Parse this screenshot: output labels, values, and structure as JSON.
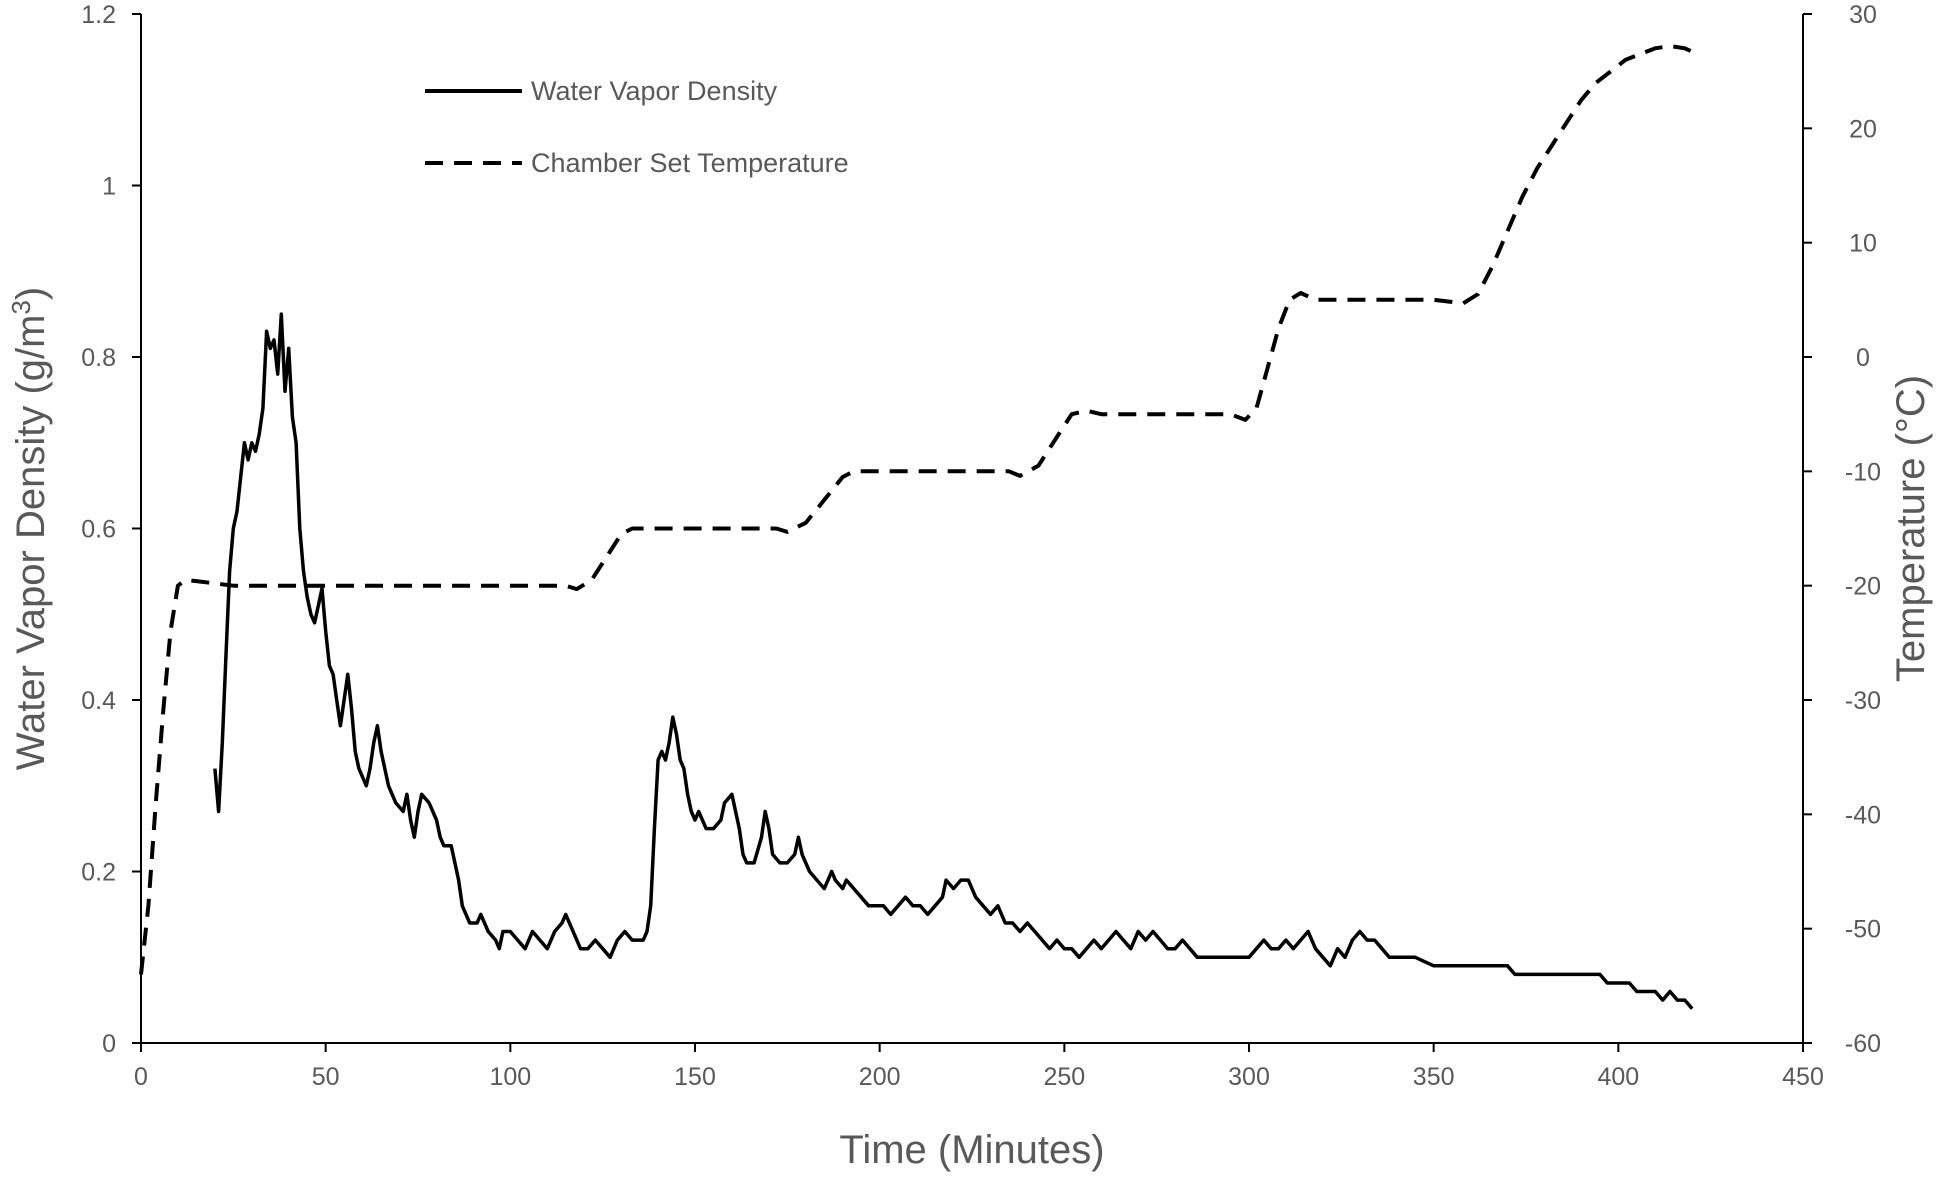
{
  "chart_data": {
    "type": "line",
    "xlabel": "Time (Minutes)",
    "ylabel_left": "Water Vapor Density (g/m",
    "ylabel_left_sup": "3",
    "ylabel_left_end": ")",
    "ylabel_right": "Temperature (°C)",
    "xlim": [
      0,
      450
    ],
    "ylim_left": [
      0,
      1.2
    ],
    "ylim_right": [
      -60,
      30
    ],
    "x_ticks": [
      "0",
      "50",
      "100",
      "150",
      "200",
      "250",
      "300",
      "350",
      "400",
      "450"
    ],
    "y_left_ticks": [
      "0",
      "0.2",
      "0.4",
      "0.6",
      "0.8",
      "1",
      "1.2"
    ],
    "y_right_ticks": [
      "-60",
      "-50",
      "-40",
      "-30",
      "-20",
      "-10",
      "0",
      "10",
      "20",
      "30"
    ],
    "legend_position": "top-left",
    "grid": false,
    "series": [
      {
        "name": "Water Vapor Density",
        "axis": "left",
        "style": "solid",
        "color": "#000000",
        "points": [
          [
            20,
            0.32
          ],
          [
            21,
            0.27
          ],
          [
            22,
            0.35
          ],
          [
            23,
            0.45
          ],
          [
            24,
            0.55
          ],
          [
            25,
            0.6
          ],
          [
            26,
            0.62
          ],
          [
            27,
            0.66
          ],
          [
            28,
            0.7
          ],
          [
            29,
            0.68
          ],
          [
            30,
            0.7
          ],
          [
            31,
            0.69
          ],
          [
            32,
            0.71
          ],
          [
            33,
            0.74
          ],
          [
            34,
            0.83
          ],
          [
            35,
            0.81
          ],
          [
            36,
            0.82
          ],
          [
            37,
            0.78
          ],
          [
            38,
            0.85
          ],
          [
            39,
            0.76
          ],
          [
            40,
            0.81
          ],
          [
            41,
            0.73
          ],
          [
            42,
            0.7
          ],
          [
            43,
            0.6
          ],
          [
            44,
            0.55
          ],
          [
            45,
            0.52
          ],
          [
            46,
            0.5
          ],
          [
            47,
            0.49
          ],
          [
            48,
            0.51
          ],
          [
            49,
            0.53
          ],
          [
            50,
            0.48
          ],
          [
            51,
            0.44
          ],
          [
            52,
            0.43
          ],
          [
            53,
            0.4
          ],
          [
            54,
            0.37
          ],
          [
            55,
            0.4
          ],
          [
            56,
            0.43
          ],
          [
            57,
            0.39
          ],
          [
            58,
            0.34
          ],
          [
            59,
            0.32
          ],
          [
            60,
            0.31
          ],
          [
            61,
            0.3
          ],
          [
            62,
            0.32
          ],
          [
            63,
            0.35
          ],
          [
            64,
            0.37
          ],
          [
            65,
            0.34
          ],
          [
            67,
            0.3
          ],
          [
            69,
            0.28
          ],
          [
            71,
            0.27
          ],
          [
            72,
            0.29
          ],
          [
            73,
            0.26
          ],
          [
            74,
            0.24
          ],
          [
            75,
            0.27
          ],
          [
            76,
            0.29
          ],
          [
            78,
            0.28
          ],
          [
            80,
            0.26
          ],
          [
            81,
            0.24
          ],
          [
            82,
            0.23
          ],
          [
            84,
            0.23
          ],
          [
            85,
            0.21
          ],
          [
            86,
            0.19
          ],
          [
            87,
            0.16
          ],
          [
            88,
            0.15
          ],
          [
            89,
            0.14
          ],
          [
            91,
            0.14
          ],
          [
            92,
            0.15
          ],
          [
            94,
            0.13
          ],
          [
            96,
            0.12
          ],
          [
            97,
            0.11
          ],
          [
            98,
            0.13
          ],
          [
            100,
            0.13
          ],
          [
            102,
            0.12
          ],
          [
            104,
            0.11
          ],
          [
            106,
            0.13
          ],
          [
            108,
            0.12
          ],
          [
            110,
            0.11
          ],
          [
            112,
            0.13
          ],
          [
            114,
            0.14
          ],
          [
            115,
            0.15
          ],
          [
            117,
            0.13
          ],
          [
            119,
            0.11
          ],
          [
            121,
            0.11
          ],
          [
            123,
            0.12
          ],
          [
            125,
            0.11
          ],
          [
            127,
            0.1
          ],
          [
            129,
            0.12
          ],
          [
            131,
            0.13
          ],
          [
            133,
            0.12
          ],
          [
            135,
            0.12
          ],
          [
            136,
            0.12
          ],
          [
            137,
            0.13
          ],
          [
            138,
            0.16
          ],
          [
            139,
            0.25
          ],
          [
            140,
            0.33
          ],
          [
            141,
            0.34
          ],
          [
            142,
            0.33
          ],
          [
            143,
            0.35
          ],
          [
            144,
            0.38
          ],
          [
            145,
            0.36
          ],
          [
            146,
            0.33
          ],
          [
            147,
            0.32
          ],
          [
            148,
            0.29
          ],
          [
            149,
            0.27
          ],
          [
            150,
            0.26
          ],
          [
            151,
            0.27
          ],
          [
            152,
            0.26
          ],
          [
            153,
            0.25
          ],
          [
            155,
            0.25
          ],
          [
            157,
            0.26
          ],
          [
            158,
            0.28
          ],
          [
            160,
            0.29
          ],
          [
            161,
            0.27
          ],
          [
            162,
            0.25
          ],
          [
            163,
            0.22
          ],
          [
            164,
            0.21
          ],
          [
            166,
            0.21
          ],
          [
            168,
            0.24
          ],
          [
            169,
            0.27
          ],
          [
            170,
            0.25
          ],
          [
            171,
            0.22
          ],
          [
            173,
            0.21
          ],
          [
            175,
            0.21
          ],
          [
            177,
            0.22
          ],
          [
            178,
            0.24
          ],
          [
            179,
            0.22
          ],
          [
            181,
            0.2
          ],
          [
            183,
            0.19
          ],
          [
            185,
            0.18
          ],
          [
            186,
            0.19
          ],
          [
            187,
            0.2
          ],
          [
            188,
            0.19
          ],
          [
            190,
            0.18
          ],
          [
            191,
            0.19
          ],
          [
            193,
            0.18
          ],
          [
            195,
            0.17
          ],
          [
            197,
            0.16
          ],
          [
            199,
            0.16
          ],
          [
            201,
            0.16
          ],
          [
            203,
            0.15
          ],
          [
            205,
            0.16
          ],
          [
            207,
            0.17
          ],
          [
            209,
            0.16
          ],
          [
            211,
            0.16
          ],
          [
            213,
            0.15
          ],
          [
            215,
            0.16
          ],
          [
            217,
            0.17
          ],
          [
            218,
            0.19
          ],
          [
            220,
            0.18
          ],
          [
            222,
            0.19
          ],
          [
            224,
            0.19
          ],
          [
            226,
            0.17
          ],
          [
            228,
            0.16
          ],
          [
            230,
            0.15
          ],
          [
            232,
            0.16
          ],
          [
            234,
            0.14
          ],
          [
            236,
            0.14
          ],
          [
            238,
            0.13
          ],
          [
            240,
            0.14
          ],
          [
            242,
            0.13
          ],
          [
            244,
            0.12
          ],
          [
            246,
            0.11
          ],
          [
            248,
            0.12
          ],
          [
            250,
            0.11
          ],
          [
            252,
            0.11
          ],
          [
            254,
            0.1
          ],
          [
            256,
            0.11
          ],
          [
            258,
            0.12
          ],
          [
            260,
            0.11
          ],
          [
            262,
            0.12
          ],
          [
            264,
            0.13
          ],
          [
            266,
            0.12
          ],
          [
            268,
            0.11
          ],
          [
            270,
            0.13
          ],
          [
            272,
            0.12
          ],
          [
            274,
            0.13
          ],
          [
            276,
            0.12
          ],
          [
            278,
            0.11
          ],
          [
            280,
            0.11
          ],
          [
            282,
            0.12
          ],
          [
            284,
            0.11
          ],
          [
            286,
            0.1
          ],
          [
            288,
            0.1
          ],
          [
            290,
            0.1
          ],
          [
            292,
            0.1
          ],
          [
            294,
            0.1
          ],
          [
            296,
            0.1
          ],
          [
            298,
            0.1
          ],
          [
            300,
            0.1
          ],
          [
            302,
            0.11
          ],
          [
            304,
            0.12
          ],
          [
            306,
            0.11
          ],
          [
            308,
            0.11
          ],
          [
            310,
            0.12
          ],
          [
            312,
            0.11
          ],
          [
            314,
            0.12
          ],
          [
            316,
            0.13
          ],
          [
            318,
            0.11
          ],
          [
            320,
            0.1
          ],
          [
            322,
            0.09
          ],
          [
            324,
            0.11
          ],
          [
            326,
            0.1
          ],
          [
            328,
            0.12
          ],
          [
            330,
            0.13
          ],
          [
            332,
            0.12
          ],
          [
            334,
            0.12
          ],
          [
            336,
            0.11
          ],
          [
            338,
            0.1
          ],
          [
            340,
            0.1
          ],
          [
            345,
            0.1
          ],
          [
            350,
            0.09
          ],
          [
            360,
            0.09
          ],
          [
            370,
            0.09
          ],
          [
            372,
            0.08
          ],
          [
            380,
            0.08
          ],
          [
            390,
            0.08
          ],
          [
            395,
            0.08
          ],
          [
            397,
            0.07
          ],
          [
            403,
            0.07
          ],
          [
            405,
            0.06
          ],
          [
            410,
            0.06
          ],
          [
            412,
            0.05
          ],
          [
            414,
            0.06
          ],
          [
            416,
            0.05
          ],
          [
            418,
            0.05
          ],
          [
            420,
            0.04
          ]
        ]
      },
      {
        "name": "Chamber Set Temperature",
        "axis": "right",
        "style": "dashed",
        "color": "#000000",
        "points": [
          [
            0,
            -54
          ],
          [
            2,
            -48
          ],
          [
            4,
            -39
          ],
          [
            6,
            -31
          ],
          [
            8,
            -24
          ],
          [
            10,
            -20
          ],
          [
            12,
            -19.5
          ],
          [
            15,
            -19.6
          ],
          [
            20,
            -19.8
          ],
          [
            25,
            -20
          ],
          [
            30,
            -20
          ],
          [
            50,
            -20
          ],
          [
            100,
            -20
          ],
          [
            115,
            -20
          ],
          [
            118,
            -20.3
          ],
          [
            122,
            -19.5
          ],
          [
            126,
            -17.5
          ],
          [
            130,
            -15.5
          ],
          [
            133,
            -15
          ],
          [
            140,
            -15
          ],
          [
            160,
            -15
          ],
          [
            172,
            -15
          ],
          [
            175,
            -15.3
          ],
          [
            180,
            -14.5
          ],
          [
            185,
            -12.5
          ],
          [
            190,
            -10.5
          ],
          [
            193,
            -10
          ],
          [
            200,
            -10
          ],
          [
            220,
            -10
          ],
          [
            235,
            -10
          ],
          [
            238,
            -10.4
          ],
          [
            243,
            -9.5
          ],
          [
            248,
            -7
          ],
          [
            252,
            -5
          ],
          [
            256,
            -4.7
          ],
          [
            260,
            -5
          ],
          [
            280,
            -5
          ],
          [
            295,
            -5
          ],
          [
            299,
            -5.5
          ],
          [
            302,
            -4.5
          ],
          [
            305,
            -1
          ],
          [
            308,
            2.5
          ],
          [
            311,
            5
          ],
          [
            314,
            5.6
          ],
          [
            318,
            5
          ],
          [
            330,
            5
          ],
          [
            350,
            5
          ],
          [
            358,
            4.7
          ],
          [
            362,
            5.5
          ],
          [
            366,
            8
          ],
          [
            370,
            11
          ],
          [
            374,
            14
          ],
          [
            378,
            16.5
          ],
          [
            382,
            18.5
          ],
          [
            386,
            20.5
          ],
          [
            390,
            22.5
          ],
          [
            394,
            24
          ],
          [
            398,
            25
          ],
          [
            402,
            26
          ],
          [
            406,
            26.5
          ],
          [
            410,
            27
          ],
          [
            414,
            27.2
          ],
          [
            418,
            27
          ],
          [
            420,
            26.7
          ]
        ]
      }
    ]
  }
}
